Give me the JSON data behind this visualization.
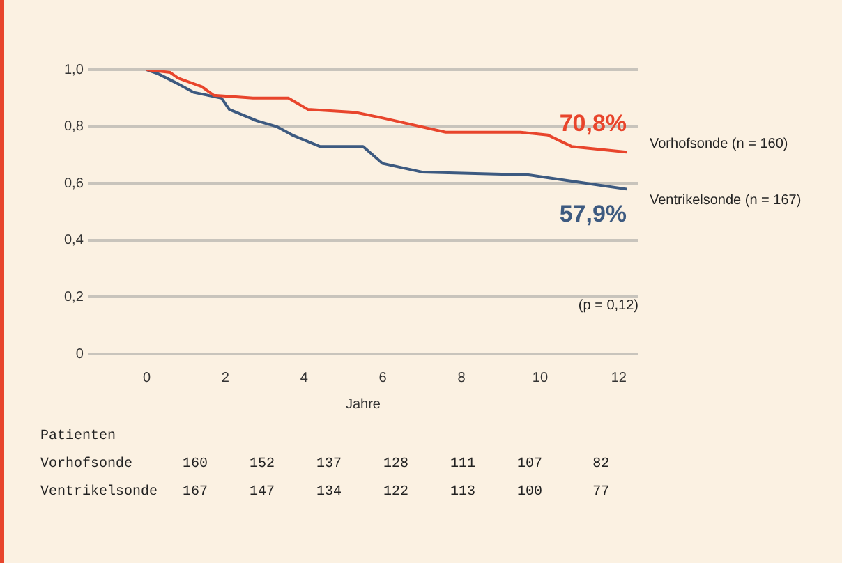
{
  "chart_data": {
    "type": "line",
    "xlabel": "Jahre",
    "xlim": [
      -1.5,
      12.5
    ],
    "xticks": [
      0,
      2,
      4,
      6,
      8,
      10,
      12
    ],
    "ylim": [
      0,
      1
    ],
    "yticks": [
      {
        "value": 0,
        "label": "0"
      },
      {
        "value": 0.2,
        "label": "0,2"
      },
      {
        "value": 0.4,
        "label": "0,4"
      },
      {
        "value": 0.6,
        "label": "0,6"
      },
      {
        "value": 0.8,
        "label": "0,8"
      },
      {
        "value": 1,
        "label": "1,0"
      }
    ],
    "grid": "y",
    "legend": false,
    "marker": "none",
    "series": [
      {
        "name": "Vorhofsonde (n = 160)",
        "color": "#e8452c",
        "x": [
          0,
          0.6,
          0.8,
          1.4,
          1.7,
          2.7,
          3.6,
          4.1,
          5.3,
          6,
          7.6,
          9.5,
          10.2,
          10.8,
          12.2
        ],
        "values": [
          1,
          0.99,
          0.97,
          0.94,
          0.91,
          0.9,
          0.9,
          0.86,
          0.85,
          0.83,
          0.78,
          0.78,
          0.77,
          0.73,
          0.71
        ]
      },
      {
        "name": "Ventrikelsonde (n = 167)",
        "color": "#3d5a80",
        "x": [
          0,
          0.3,
          0.8,
          1.2,
          1.9,
          2.1,
          2.8,
          3.3,
          3.7,
          4.4,
          5.5,
          6,
          7,
          9.7,
          11.2,
          12.2
        ],
        "values": [
          1,
          0.985,
          0.95,
          0.92,
          0.9,
          0.86,
          0.82,
          0.8,
          0.77,
          0.73,
          0.73,
          0.67,
          0.64,
          0.63,
          0.6,
          0.58
        ]
      }
    ],
    "annotations": [
      {
        "text": "70,8%",
        "x": 12.2,
        "y": 0.708
      },
      {
        "text": "57,9%",
        "x": 12.2,
        "y": 0.579
      },
      "(p = 0,12)",
      "Patienten",
      "Vorhofsonde      160     152     137     128     111     107      82",
      "Ventrikelsonde   167     147     134     122     113     100      77"
    ]
  }
}
